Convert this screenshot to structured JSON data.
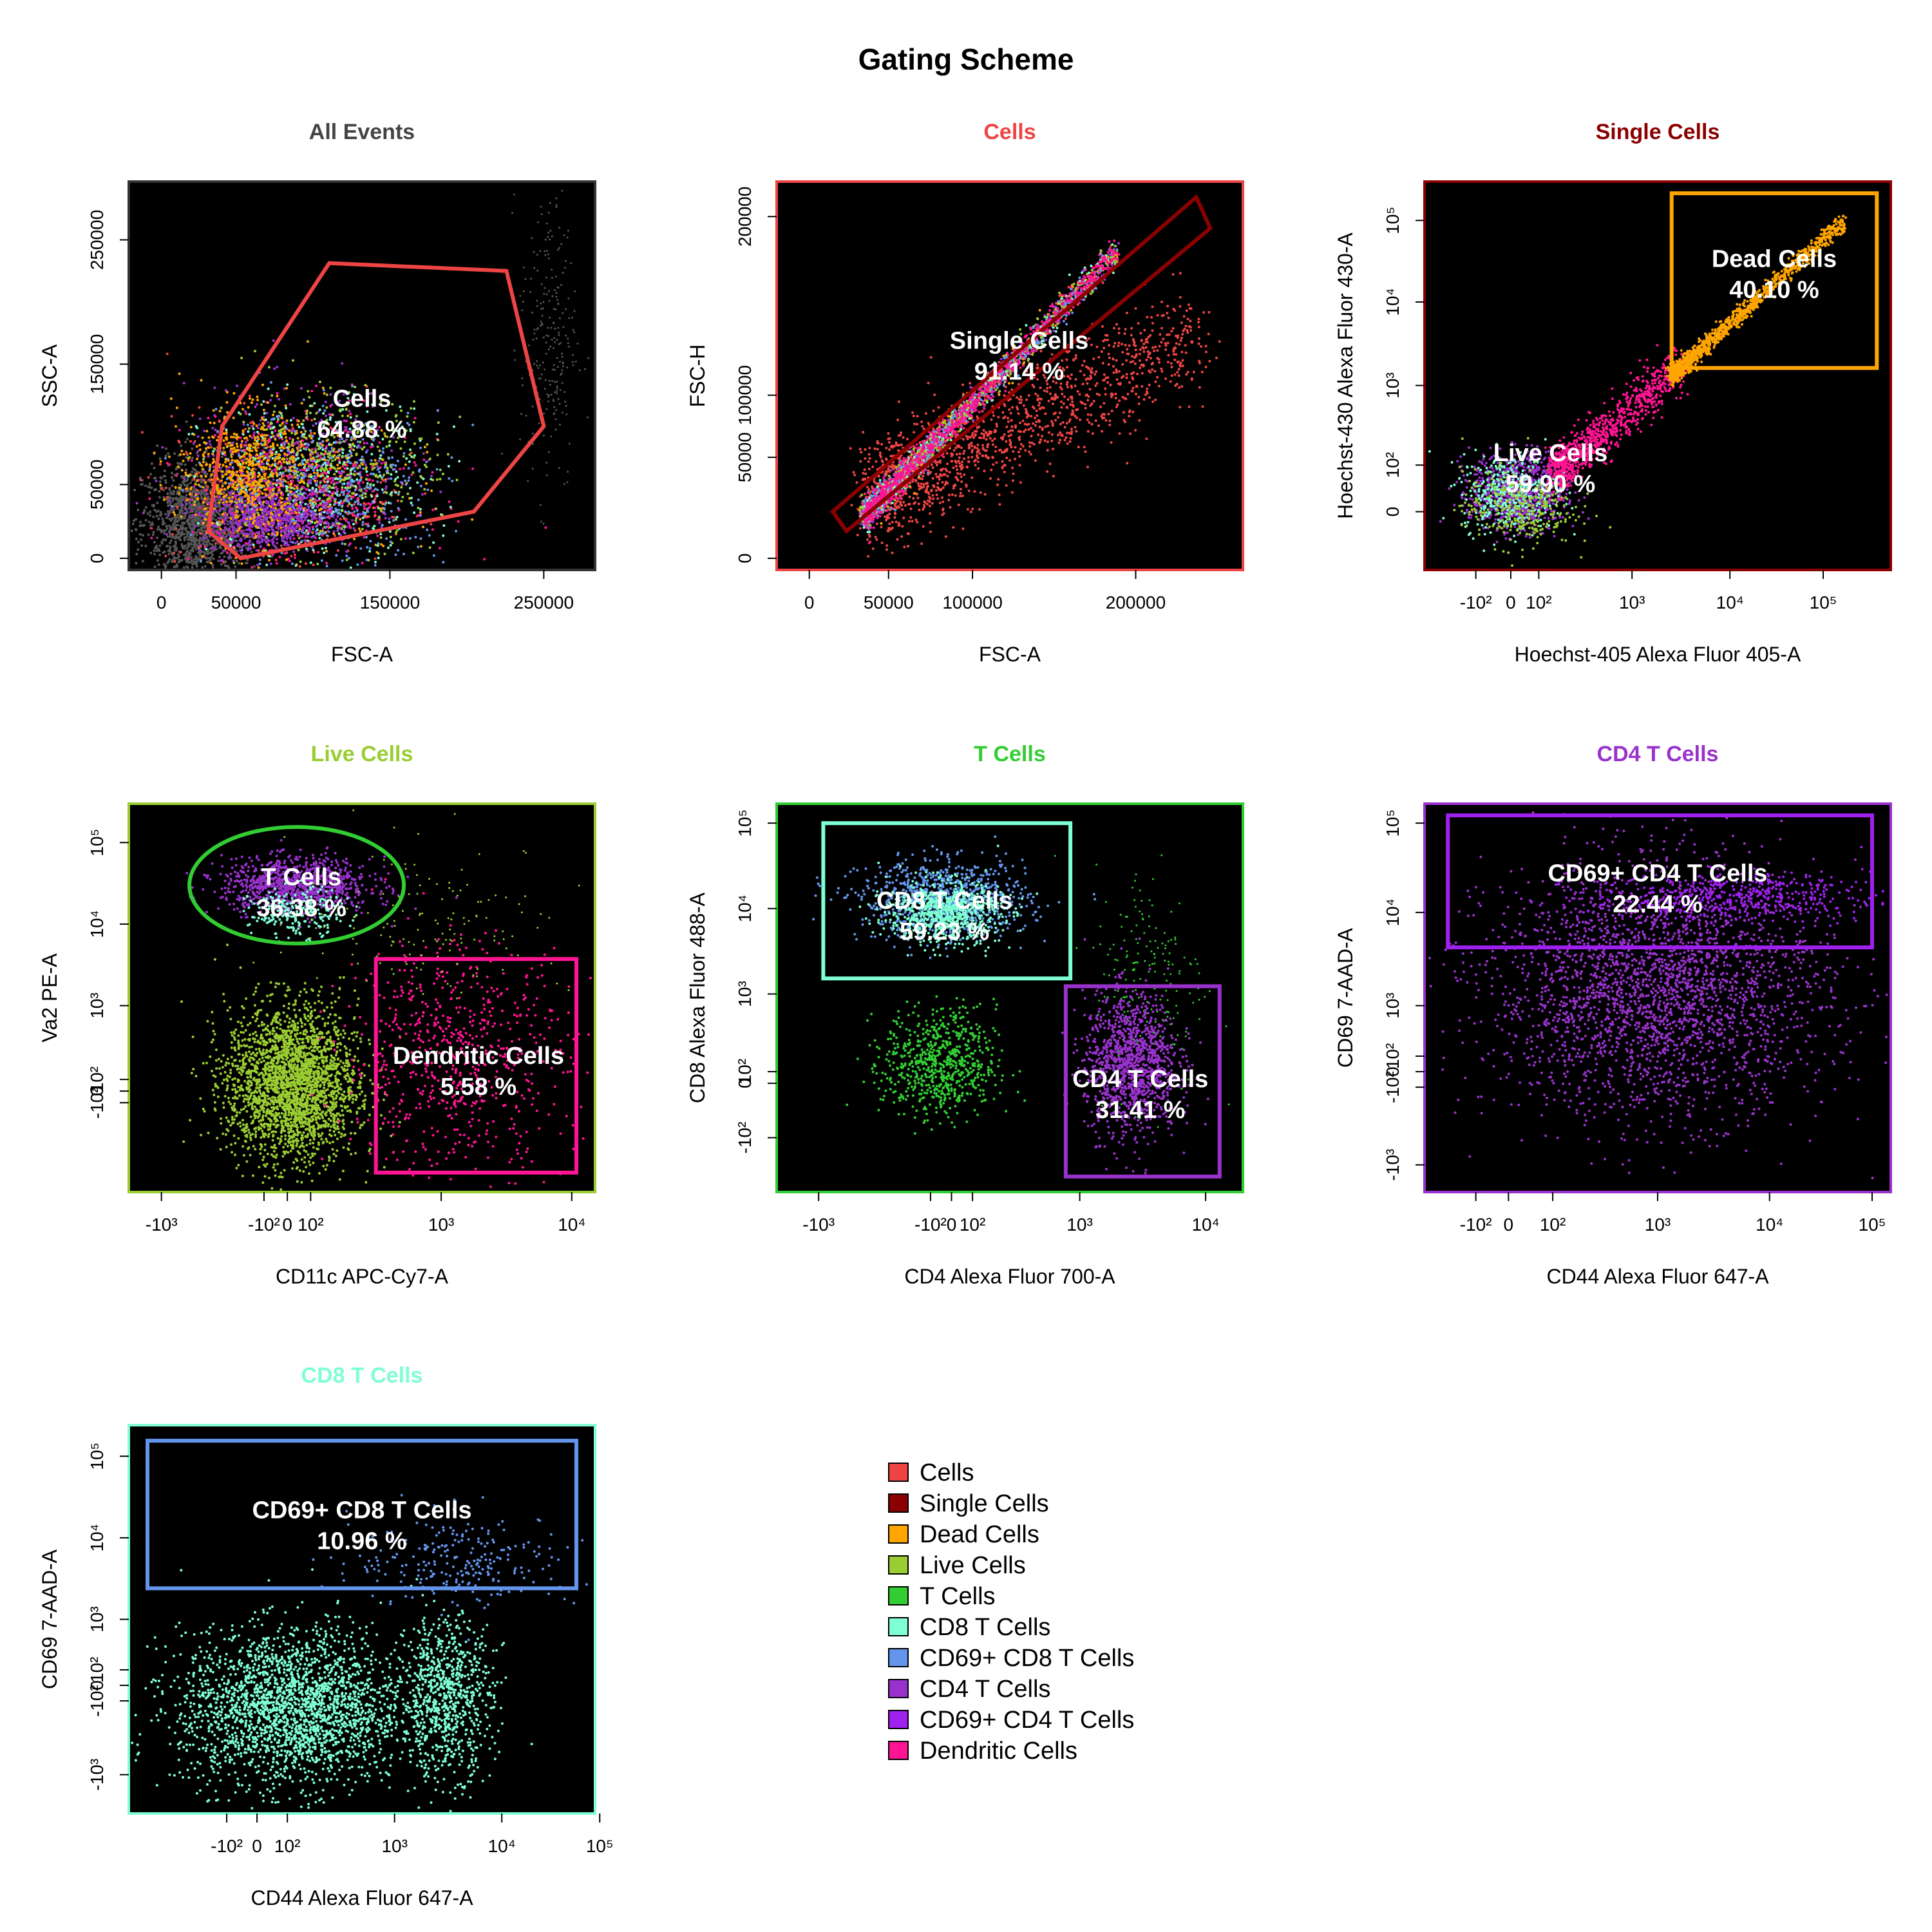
{
  "title": "Gating Scheme",
  "colors": {
    "all_events": "#444444",
    "cells": "#ee4444",
    "single_cells": "#8b0000",
    "dead_cells": "#ffa500",
    "live_cells": "#9acd32",
    "t_cells": "#32cd32",
    "cd8_t_cells": "#7fffd4",
    "cd69_cd8_t_cells": "#6495ed",
    "cd4_t_cells": "#9932cc",
    "cd69_cd4_t_cells": "#a020f0",
    "dendritic_cells": "#ff1493"
  },
  "legend": [
    {
      "label": "Cells",
      "color": "#ee4444"
    },
    {
      "label": "Single Cells",
      "color": "#8b0000"
    },
    {
      "label": "Dead Cells",
      "color": "#ffa500"
    },
    {
      "label": "Live Cells",
      "color": "#9acd32"
    },
    {
      "label": "T Cells",
      "color": "#32cd32"
    },
    {
      "label": "CD8 T Cells",
      "color": "#7fffd4"
    },
    {
      "label": "CD69+ CD8 T Cells",
      "color": "#6495ed"
    },
    {
      "label": "CD4 T Cells",
      "color": "#9932cc"
    },
    {
      "label": "CD69+ CD4 T Cells",
      "color": "#a020f0"
    },
    {
      "label": "Dendritic Cells",
      "color": "#ff1493"
    }
  ],
  "chart_data": [
    {
      "type": "scatter",
      "title": "All Events",
      "title_color": "#444444",
      "frame_color": "#333333",
      "xlabel": "FSC-A",
      "ylabel": "SSC-A",
      "x_ticks": [
        "0",
        "50000",
        "150000",
        "250000"
      ],
      "y_ticks": [
        "0",
        "50000",
        "150000",
        "250000"
      ],
      "xlim": [
        -10000,
        280000
      ],
      "ylim": [
        -10000,
        280000
      ],
      "gates": [
        {
          "name": "Cells",
          "percent": "64.88 %",
          "label_text": "Cells",
          "color": "#ee4444",
          "shape": "polygon"
        }
      ]
    },
    {
      "type": "scatter",
      "title": "Cells",
      "title_color": "#ee4444",
      "frame_color": "#ee4444",
      "xlabel": "FSC-A",
      "ylabel": "FSC-H",
      "x_ticks": [
        "0",
        "50000",
        "100000",
        "200000"
      ],
      "y_ticks": [
        "0",
        "50000",
        "100000",
        "200000"
      ],
      "xlim": [
        -10000,
        260000
      ],
      "ylim": [
        -10000,
        210000
      ],
      "gates": [
        {
          "name": "Single Cells",
          "percent": "91.14 %",
          "label_text": "Single Cells",
          "color": "#8b0000",
          "shape": "polygon"
        }
      ]
    },
    {
      "type": "scatter",
      "title": "Single Cells",
      "title_color": "#8b0000",
      "frame_color": "#8b0000",
      "xlabel": "Hoechst-405 Alexa Fluor 405-A",
      "ylabel": "Hoechst-430 Alexa Fluor 430-A",
      "x_ticks": [
        "-10²",
        "0",
        "10²",
        "10³",
        "10⁴",
        "10⁵"
      ],
      "y_ticks": [
        "0",
        "10²",
        "10³",
        "10⁴",
        "10⁵"
      ],
      "scale": "biexponential",
      "gates": [
        {
          "name": "Dead Cells",
          "percent": "40.10 %",
          "label_text": "Dead Cells",
          "color": "#ffa500",
          "shape": "rect"
        },
        {
          "name": "Live Cells",
          "percent": "59.90 %",
          "label_text": "Live Cells",
          "color": "#9acd32",
          "shape": "none"
        }
      ]
    },
    {
      "type": "scatter",
      "title": "Live Cells",
      "title_color": "#9acd32",
      "frame_color": "#9acd32",
      "xlabel": "CD11c APC-Cy7-A",
      "ylabel": "Va2 PE-A",
      "x_ticks": [
        "-10³",
        "-10²",
        "0",
        "10²",
        "10³",
        "10⁴"
      ],
      "y_ticks": [
        "-10²",
        "0",
        "10²",
        "10³",
        "10⁴",
        "10⁵"
      ],
      "scale": "biexponential",
      "gates": [
        {
          "name": "T Cells",
          "percent": "36.38 %",
          "label_text": "T Cells",
          "color": "#32cd32",
          "shape": "ellipse"
        },
        {
          "name": "Dendritic Cells",
          "percent": "5.58 %",
          "label_text": "Dendritic Cells",
          "color": "#ff1493",
          "shape": "rect"
        }
      ]
    },
    {
      "type": "scatter",
      "title": "T Cells",
      "title_color": "#32cd32",
      "frame_color": "#32cd32",
      "xlabel": "CD4 Alexa Fluor 700-A",
      "ylabel": "CD8 Alexa Fluor 488-A",
      "x_ticks": [
        "-10³",
        "-10²",
        "0",
        "10²",
        "10³",
        "10⁴"
      ],
      "y_ticks": [
        "-10²",
        "0",
        "10²",
        "10³",
        "10⁴",
        "10⁵"
      ],
      "scale": "biexponential",
      "gates": [
        {
          "name": "CD8 T Cells",
          "percent": "59.23 %",
          "label_text": "CD8 T Cells",
          "color": "#7fffd4",
          "shape": "rect"
        },
        {
          "name": "CD4 T Cells",
          "percent": "31.41 %",
          "label_text": "CD4 T Cells",
          "color": "#9932cc",
          "shape": "rect"
        }
      ]
    },
    {
      "type": "scatter",
      "title": "CD4 T Cells",
      "title_color": "#9932cc",
      "frame_color": "#9932cc",
      "xlabel": "CD44 Alexa Fluor 647-A",
      "ylabel": "CD69 7-AAD-A",
      "x_ticks": [
        "-10²",
        "0",
        "10²",
        "10³",
        "10⁴",
        "10⁵"
      ],
      "y_ticks": [
        "-10³",
        "-10²",
        "0",
        "10²",
        "10³",
        "10⁴",
        "10⁵"
      ],
      "scale": "biexponential",
      "gates": [
        {
          "name": "CD69+ CD4 T Cells",
          "percent": "22.44 %",
          "label_text": "CD69+ CD4 T Cells",
          "color": "#a020f0",
          "shape": "rect"
        }
      ]
    },
    {
      "type": "scatter",
      "title": "CD8 T Cells",
      "title_color": "#7fffd4",
      "frame_color": "#7fffd4",
      "xlabel": "CD44 Alexa Fluor 647-A",
      "ylabel": "CD69 7-AAD-A",
      "x_ticks": [
        "-10²",
        "0",
        "10²",
        "10³",
        "10⁴",
        "10⁵"
      ],
      "y_ticks": [
        "-10³",
        "-10²",
        "0",
        "10²",
        "10³",
        "10⁴",
        "10⁵"
      ],
      "scale": "biexponential",
      "gates": [
        {
          "name": "CD69+ CD8 T Cells",
          "percent": "10.96 %",
          "label_text": "CD69+ CD8 T Cells",
          "color": "#6495ed",
          "shape": "rect"
        }
      ]
    }
  ]
}
